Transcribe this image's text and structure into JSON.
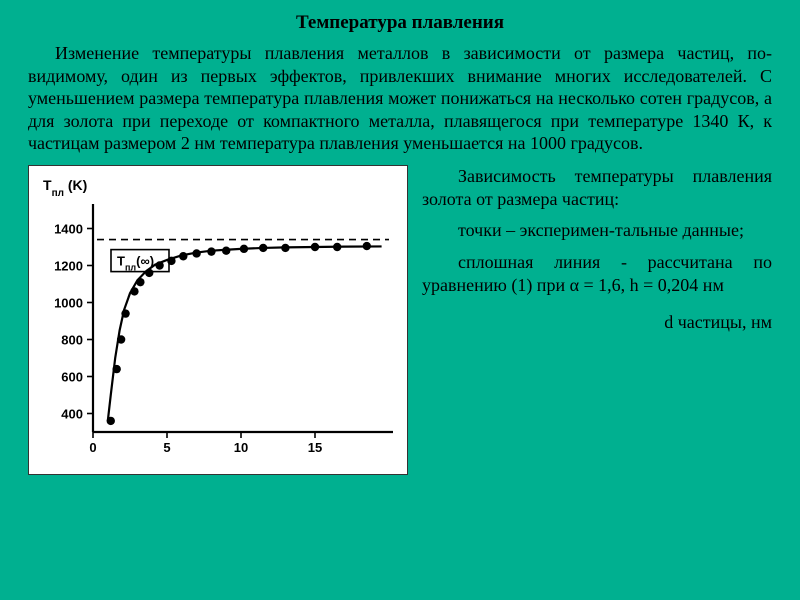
{
  "title": "Температура плавления",
  "intro": "Изменение температуры плавления металлов в зависимости от размера частиц, по-видимому, один из первых эффектов, привлекших внимание многих исследователей. С уменьшением размера температура плавления может понижаться на несколько сотен градусов, а для золота при переходе от компактного металла, плавящегося при температуре 1340 К, к частицам размером 2 нм температура плавления уменьшается на 1000 градусов.",
  "caption": {
    "p1": "Зависимость температуры плавления золота от размера частиц:",
    "p2": "точки – эксперимен-тальные данные;",
    "p3": "сплошная линия - рассчитана по уравнению (1) при α = 1,6, h = 0,204 нм"
  },
  "axis_bottom_label": "d частицы, нм",
  "chart": {
    "type": "scatter+line",
    "background_color": "#ffffff",
    "axis_color": "#000000",
    "frame_line_width": 2.2,
    "y_axis_title": "T_пл (K)",
    "asymptote_label": "T_пл (∞)",
    "asymptote_y": 1340,
    "xlim": [
      0,
      20
    ],
    "ylim": [
      300,
      1500
    ],
    "x_ticks": [
      0,
      5,
      10,
      15
    ],
    "y_ticks": [
      400,
      600,
      800,
      1000,
      1200,
      1400
    ],
    "tick_fontsize": 13,
    "axis_title_fontsize": 14,
    "marker_radius": 4.2,
    "marker_color": "#000000",
    "line_width": 2.2,
    "line_color": "#000000",
    "asymptote_dash": "7 5",
    "curve_points_x": [
      1.0,
      1.2,
      1.5,
      1.8,
      2.1,
      2.5,
      3.0,
      3.6,
      4.2,
      5.0,
      6.0,
      7.0,
      8.0,
      9.0,
      10.0,
      11.5,
      13.0,
      15.0,
      17.0,
      19.5
    ],
    "curve_points_y": [
      360,
      500,
      700,
      850,
      960,
      1050,
      1120,
      1170,
      1205,
      1230,
      1255,
      1270,
      1280,
      1285,
      1290,
      1295,
      1298,
      1300,
      1302,
      1303
    ],
    "data_points": [
      {
        "x": 1.2,
        "y": 360
      },
      {
        "x": 1.6,
        "y": 640
      },
      {
        "x": 1.9,
        "y": 800
      },
      {
        "x": 2.2,
        "y": 940
      },
      {
        "x": 2.8,
        "y": 1060
      },
      {
        "x": 3.2,
        "y": 1110
      },
      {
        "x": 3.8,
        "y": 1160
      },
      {
        "x": 4.5,
        "y": 1200
      },
      {
        "x": 5.3,
        "y": 1225
      },
      {
        "x": 6.1,
        "y": 1250
      },
      {
        "x": 7.0,
        "y": 1265
      },
      {
        "x": 8.0,
        "y": 1275
      },
      {
        "x": 9.0,
        "y": 1280
      },
      {
        "x": 10.2,
        "y": 1290
      },
      {
        "x": 11.5,
        "y": 1295
      },
      {
        "x": 13.0,
        "y": 1295
      },
      {
        "x": 15.0,
        "y": 1300
      },
      {
        "x": 16.5,
        "y": 1300
      },
      {
        "x": 18.5,
        "y": 1305
      }
    ]
  }
}
